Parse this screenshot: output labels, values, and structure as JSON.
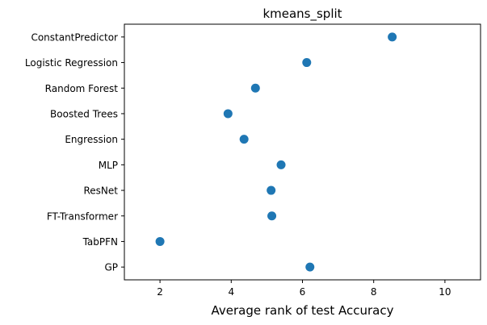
{
  "chart_data": {
    "type": "scatter",
    "title": "kmeans_split",
    "xlabel": "Average rank of test Accuracy",
    "ylabel": "",
    "xlim": [
      1,
      11
    ],
    "xticks": [
      2,
      4,
      6,
      8,
      10
    ],
    "grid": false,
    "legend": "none",
    "marker_color": "#1f77b4",
    "categories": [
      "ConstantPredictor",
      "Logistic Regression",
      "Random Forest",
      "Boosted Trees",
      "Engression",
      "MLP",
      "ResNet",
      "FT-Transformer",
      "TabPFN",
      "GP"
    ],
    "values": [
      8.52,
      6.12,
      4.68,
      3.91,
      4.36,
      5.4,
      5.12,
      5.14,
      2.0,
      6.21
    ]
  }
}
